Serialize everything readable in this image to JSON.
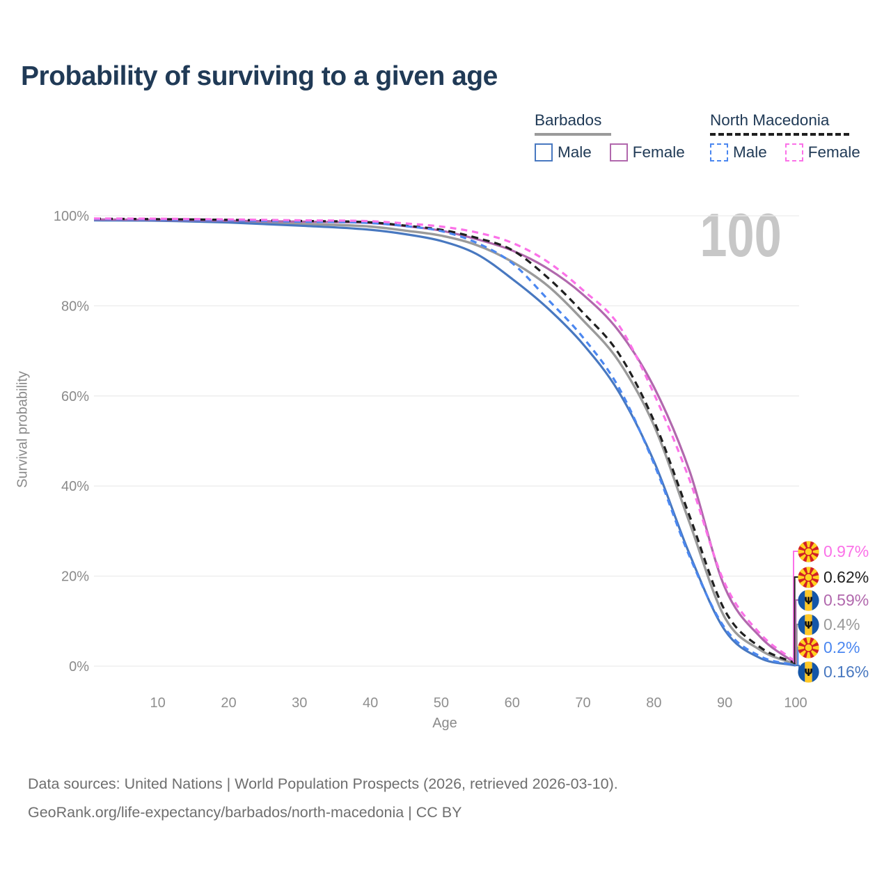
{
  "title": "Probability of surviving to a given age",
  "watermark": "100",
  "legend": {
    "groups": [
      {
        "name": "Barbados",
        "line_color": "#9a9a9a",
        "line_style": "solid",
        "items": [
          {
            "label": "Male",
            "color": "#4878c0",
            "style": "solid"
          },
          {
            "label": "Female",
            "color": "#b168ad",
            "style": "solid"
          }
        ]
      },
      {
        "name": "North Macedonia",
        "line_color": "#1f1f1f",
        "line_style": "dashed",
        "items": [
          {
            "label": "Male",
            "color": "#4b87f0",
            "style": "dashed"
          },
          {
            "label": "Female",
            "color": "#fb71e8",
            "style": "dashed"
          }
        ]
      }
    ]
  },
  "chart_data": {
    "type": "line",
    "title": "Probability of surviving to a given age",
    "xlabel": "Age",
    "ylabel": "Survival probability",
    "xlim": [
      1,
      100
    ],
    "ylim": [
      0,
      100
    ],
    "x_ticks": [
      10,
      20,
      30,
      40,
      50,
      60,
      70,
      80,
      90,
      100
    ],
    "y_ticks": [
      0,
      20,
      40,
      60,
      80,
      100
    ],
    "y_tick_suffix": "%",
    "grid": "horizontal",
    "legend_position": "top-right",
    "ages": [
      1,
      10,
      20,
      30,
      40,
      45,
      50,
      55,
      60,
      65,
      70,
      75,
      80,
      85,
      90,
      95,
      100
    ],
    "series": [
      {
        "name": "Barbados (both sexes)",
        "color": "#9a9a9a",
        "dash": null,
        "width": 3.4,
        "end_label": "0.4%",
        "values": [
          99.1,
          99.0,
          98.7,
          98.2,
          97.6,
          96.7,
          95.6,
          93.5,
          89.8,
          84.5,
          76.8,
          67.8,
          53.5,
          32.0,
          10.8,
          3.6,
          0.4
        ]
      },
      {
        "name": "Barbados Male",
        "color": "#4878c0",
        "dash": null,
        "width": 3.2,
        "end_label": "0.16%",
        "values": [
          99.0,
          98.9,
          98.5,
          97.8,
          96.9,
          95.9,
          94.4,
          91.5,
          86.0,
          79.5,
          71.5,
          61.0,
          45.5,
          25.0,
          8.0,
          1.8,
          0.16
        ]
      },
      {
        "name": "Barbados Female",
        "color": "#b168ad",
        "dash": null,
        "width": 3.2,
        "end_label": "0.59%",
        "values": [
          99.2,
          99.1,
          98.9,
          98.7,
          98.4,
          97.7,
          96.7,
          94.8,
          92.3,
          88.3,
          82.5,
          74.5,
          62.0,
          43.5,
          17.5,
          6.5,
          0.59
        ]
      },
      {
        "name": "North Macedonia (both sexes)",
        "color": "#1f1f1f",
        "dash": "10 7",
        "width": 3.2,
        "end_label": "0.62%",
        "values": [
          99.35,
          99.25,
          99.1,
          98.85,
          98.55,
          97.8,
          96.9,
          95.1,
          92.4,
          86.3,
          78.5,
          69.5,
          54.5,
          33.5,
          12.4,
          4.2,
          0.62
        ]
      },
      {
        "name": "North Macedonia Male",
        "color": "#4b87f0",
        "dash": "9 7",
        "width": 3.2,
        "end_label": "0.2%",
        "values": [
          99.3,
          99.2,
          99.0,
          98.7,
          98.4,
          97.7,
          96.6,
          94.0,
          89.5,
          81.5,
          73.0,
          62.0,
          45.0,
          24.5,
          8.5,
          2.2,
          0.2
        ]
      },
      {
        "name": "North Macedonia Female",
        "color": "#fb71e8",
        "dash": "9 7",
        "width": 3.2,
        "end_label": "0.97%",
        "values": [
          99.4,
          99.35,
          99.2,
          99.0,
          98.8,
          98.3,
          97.6,
          96.3,
          94.0,
          89.8,
          83.5,
          75.8,
          60.5,
          41.5,
          18.4,
          7.2,
          0.97
        ]
      }
    ]
  },
  "end_labels": [
    {
      "flag": "north-macedonia",
      "value": "0.97%",
      "color": "#fb71e8"
    },
    {
      "flag": "north-macedonia",
      "value": "0.62%",
      "color": "#1f1f1f"
    },
    {
      "flag": "barbados",
      "value": "0.59%",
      "color": "#b168ad"
    },
    {
      "flag": "barbados",
      "value": "0.4%",
      "color": "#9a9a9a"
    },
    {
      "flag": "north-macedonia",
      "value": "0.2%",
      "color": "#4b87f0"
    },
    {
      "flag": "barbados",
      "value": "0.16%",
      "color": "#4878c0"
    }
  ],
  "footer": {
    "line1": "Data sources: United Nations | World Population Prospects (2026, retrieved 2026-03-10).",
    "line2": "GeoRank.org/life-expectancy/barbados/north-macedonia | CC BY"
  }
}
